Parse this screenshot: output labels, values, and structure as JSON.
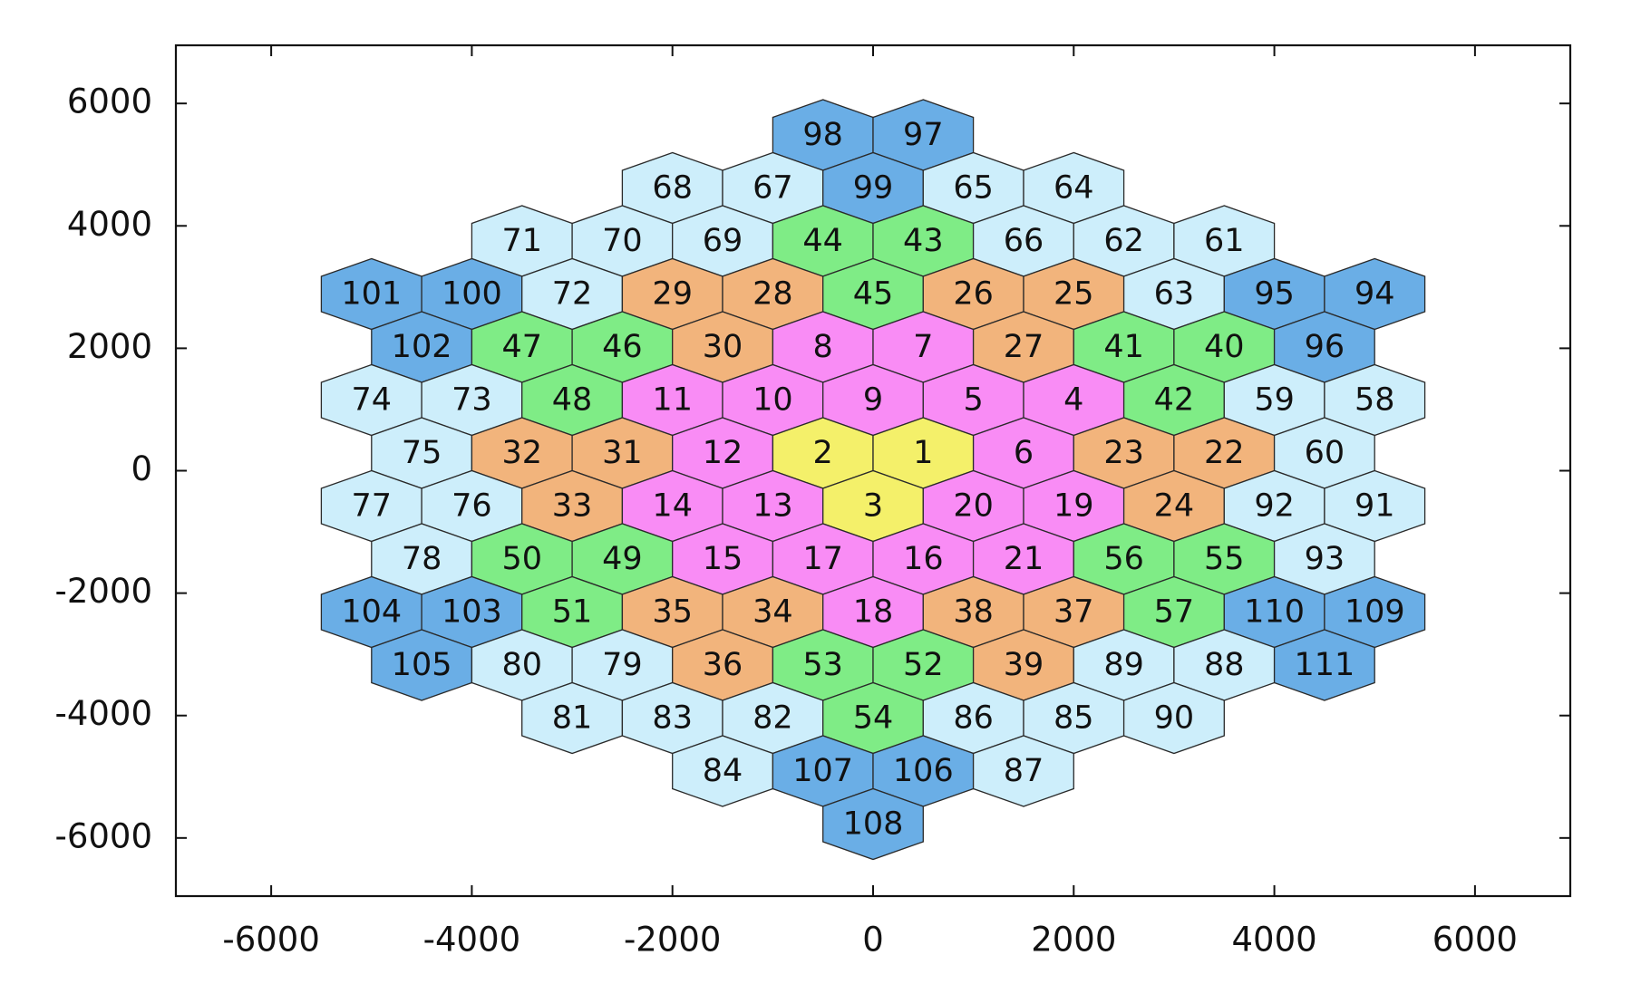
{
  "chart_data": {
    "type": "hexmap",
    "xlim": [
      -6950,
      6950
    ],
    "ylim": [
      -6950,
      6950
    ],
    "xticks": [
      -6000,
      -4000,
      -2000,
      0,
      2000,
      4000,
      6000
    ],
    "yticks": [
      -6000,
      -4000,
      -2000,
      0,
      2000,
      4000,
      6000
    ],
    "cell_width": 1000,
    "cells": [
      {
        "label": 98,
        "x": -500,
        "y": 5485,
        "color": "#6aaee6"
      },
      {
        "label": 97,
        "x": 500,
        "y": 5485,
        "color": "#6aaee6"
      },
      {
        "label": 68,
        "x": -2000,
        "y": 4619,
        "color": "#cdeefb"
      },
      {
        "label": 67,
        "x": -1000,
        "y": 4619,
        "color": "#cdeefb"
      },
      {
        "label": 99,
        "x": 0,
        "y": 4619,
        "color": "#6aaee6"
      },
      {
        "label": 65,
        "x": 1000,
        "y": 4619,
        "color": "#cdeefb"
      },
      {
        "label": 64,
        "x": 2000,
        "y": 4619,
        "color": "#cdeefb"
      },
      {
        "label": 71,
        "x": -3500,
        "y": 3753,
        "color": "#cdeefb"
      },
      {
        "label": 70,
        "x": -2500,
        "y": 3753,
        "color": "#cdeefb"
      },
      {
        "label": 69,
        "x": -1500,
        "y": 3753,
        "color": "#cdeefb"
      },
      {
        "label": 44,
        "x": -500,
        "y": 3753,
        "color": "#7fec86"
      },
      {
        "label": 43,
        "x": 500,
        "y": 3753,
        "color": "#7fec86"
      },
      {
        "label": 66,
        "x": 1500,
        "y": 3753,
        "color": "#cdeefb"
      },
      {
        "label": 62,
        "x": 2500,
        "y": 3753,
        "color": "#cdeefb"
      },
      {
        "label": 61,
        "x": 3500,
        "y": 3753,
        "color": "#cdeefb"
      },
      {
        "label": 101,
        "x": -5000,
        "y": 2887,
        "color": "#6aaee6"
      },
      {
        "label": 100,
        "x": -4000,
        "y": 2887,
        "color": "#6aaee6"
      },
      {
        "label": 72,
        "x": -3000,
        "y": 2887,
        "color": "#cdeefb"
      },
      {
        "label": 29,
        "x": -2000,
        "y": 2887,
        "color": "#f2b47c"
      },
      {
        "label": 28,
        "x": -1000,
        "y": 2887,
        "color": "#f2b47c"
      },
      {
        "label": 45,
        "x": 0,
        "y": 2887,
        "color": "#7fec86"
      },
      {
        "label": 26,
        "x": 1000,
        "y": 2887,
        "color": "#f2b47c"
      },
      {
        "label": 25,
        "x": 2000,
        "y": 2887,
        "color": "#f2b47c"
      },
      {
        "label": 63,
        "x": 3000,
        "y": 2887,
        "color": "#cdeefb"
      },
      {
        "label": 95,
        "x": 4000,
        "y": 2887,
        "color": "#6aaee6"
      },
      {
        "label": 94,
        "x": 5000,
        "y": 2887,
        "color": "#6aaee6"
      },
      {
        "label": 102,
        "x": -4500,
        "y": 2021,
        "color": "#6aaee6"
      },
      {
        "label": 47,
        "x": -3500,
        "y": 2021,
        "color": "#7fec86"
      },
      {
        "label": 46,
        "x": -2500,
        "y": 2021,
        "color": "#7fec86"
      },
      {
        "label": 30,
        "x": -1500,
        "y": 2021,
        "color": "#f2b47c"
      },
      {
        "label": 8,
        "x": -500,
        "y": 2021,
        "color": "#f98cf5"
      },
      {
        "label": 7,
        "x": 500,
        "y": 2021,
        "color": "#f98cf5"
      },
      {
        "label": 27,
        "x": 1500,
        "y": 2021,
        "color": "#f2b47c"
      },
      {
        "label": 41,
        "x": 2500,
        "y": 2021,
        "color": "#7fec86"
      },
      {
        "label": 40,
        "x": 3500,
        "y": 2021,
        "color": "#7fec86"
      },
      {
        "label": 96,
        "x": 4500,
        "y": 2021,
        "color": "#6aaee6"
      },
      {
        "label": 74,
        "x": -5000,
        "y": 1155,
        "color": "#cdeefb"
      },
      {
        "label": 73,
        "x": -4000,
        "y": 1155,
        "color": "#cdeefb"
      },
      {
        "label": 48,
        "x": -3000,
        "y": 1155,
        "color": "#7fec86"
      },
      {
        "label": 11,
        "x": -2000,
        "y": 1155,
        "color": "#f98cf5"
      },
      {
        "label": 10,
        "x": -1000,
        "y": 1155,
        "color": "#f98cf5"
      },
      {
        "label": 9,
        "x": 0,
        "y": 1155,
        "color": "#f98cf5"
      },
      {
        "label": 5,
        "x": 1000,
        "y": 1155,
        "color": "#f98cf5"
      },
      {
        "label": 4,
        "x": 2000,
        "y": 1155,
        "color": "#f98cf5"
      },
      {
        "label": 42,
        "x": 3000,
        "y": 1155,
        "color": "#7fec86"
      },
      {
        "label": 59,
        "x": 4000,
        "y": 1155,
        "color": "#cdeefb"
      },
      {
        "label": 58,
        "x": 5000,
        "y": 1155,
        "color": "#cdeefb"
      },
      {
        "label": 75,
        "x": -4500,
        "y": 289,
        "color": "#cdeefb"
      },
      {
        "label": 32,
        "x": -3500,
        "y": 289,
        "color": "#f2b47c"
      },
      {
        "label": 31,
        "x": -2500,
        "y": 289,
        "color": "#f2b47c"
      },
      {
        "label": 12,
        "x": -1500,
        "y": 289,
        "color": "#f98cf5"
      },
      {
        "label": 2,
        "x": -500,
        "y": 289,
        "color": "#f4f06a"
      },
      {
        "label": 1,
        "x": 500,
        "y": 289,
        "color": "#f4f06a"
      },
      {
        "label": 6,
        "x": 1500,
        "y": 289,
        "color": "#f98cf5"
      },
      {
        "label": 23,
        "x": 2500,
        "y": 289,
        "color": "#f2b47c"
      },
      {
        "label": 22,
        "x": 3500,
        "y": 289,
        "color": "#f2b47c"
      },
      {
        "label": 60,
        "x": 4500,
        "y": 289,
        "color": "#cdeefb"
      },
      {
        "label": 77,
        "x": -5000,
        "y": -577,
        "color": "#cdeefb"
      },
      {
        "label": 76,
        "x": -4000,
        "y": -577,
        "color": "#cdeefb"
      },
      {
        "label": 33,
        "x": -3000,
        "y": -577,
        "color": "#f2b47c"
      },
      {
        "label": 14,
        "x": -2000,
        "y": -577,
        "color": "#f98cf5"
      },
      {
        "label": 13,
        "x": -1000,
        "y": -577,
        "color": "#f98cf5"
      },
      {
        "label": 3,
        "x": 0,
        "y": -577,
        "color": "#f4f06a"
      },
      {
        "label": 20,
        "x": 1000,
        "y": -577,
        "color": "#f98cf5"
      },
      {
        "label": 19,
        "x": 2000,
        "y": -577,
        "color": "#f98cf5"
      },
      {
        "label": 24,
        "x": 3000,
        "y": -577,
        "color": "#f2b47c"
      },
      {
        "label": 92,
        "x": 4000,
        "y": -577,
        "color": "#cdeefb"
      },
      {
        "label": 91,
        "x": 5000,
        "y": -577,
        "color": "#cdeefb"
      },
      {
        "label": 78,
        "x": -4500,
        "y": -1443,
        "color": "#cdeefb"
      },
      {
        "label": 50,
        "x": -3500,
        "y": -1443,
        "color": "#7fec86"
      },
      {
        "label": 49,
        "x": -2500,
        "y": -1443,
        "color": "#7fec86"
      },
      {
        "label": 15,
        "x": -1500,
        "y": -1443,
        "color": "#f98cf5"
      },
      {
        "label": 17,
        "x": -500,
        "y": -1443,
        "color": "#f98cf5"
      },
      {
        "label": 16,
        "x": 500,
        "y": -1443,
        "color": "#f98cf5"
      },
      {
        "label": 21,
        "x": 1500,
        "y": -1443,
        "color": "#f98cf5"
      },
      {
        "label": 56,
        "x": 2500,
        "y": -1443,
        "color": "#7fec86"
      },
      {
        "label": 55,
        "x": 3500,
        "y": -1443,
        "color": "#7fec86"
      },
      {
        "label": 93,
        "x": 4500,
        "y": -1443,
        "color": "#cdeefb"
      },
      {
        "label": 104,
        "x": -5000,
        "y": -2309,
        "color": "#6aaee6"
      },
      {
        "label": 103,
        "x": -4000,
        "y": -2309,
        "color": "#6aaee6"
      },
      {
        "label": 51,
        "x": -3000,
        "y": -2309,
        "color": "#7fec86"
      },
      {
        "label": 35,
        "x": -2000,
        "y": -2309,
        "color": "#f2b47c"
      },
      {
        "label": 34,
        "x": -1000,
        "y": -2309,
        "color": "#f2b47c"
      },
      {
        "label": 18,
        "x": 0,
        "y": -2309,
        "color": "#f98cf5"
      },
      {
        "label": 38,
        "x": 1000,
        "y": -2309,
        "color": "#f2b47c"
      },
      {
        "label": 37,
        "x": 2000,
        "y": -2309,
        "color": "#f2b47c"
      },
      {
        "label": 57,
        "x": 3000,
        "y": -2309,
        "color": "#7fec86"
      },
      {
        "label": 110,
        "x": 4000,
        "y": -2309,
        "color": "#6aaee6"
      },
      {
        "label": 109,
        "x": 5000,
        "y": -2309,
        "color": "#6aaee6"
      },
      {
        "label": 105,
        "x": -4500,
        "y": -3175,
        "color": "#6aaee6"
      },
      {
        "label": 80,
        "x": -3500,
        "y": -3175,
        "color": "#cdeefb"
      },
      {
        "label": 79,
        "x": -2500,
        "y": -3175,
        "color": "#cdeefb"
      },
      {
        "label": 36,
        "x": -1500,
        "y": -3175,
        "color": "#f2b47c"
      },
      {
        "label": 53,
        "x": -500,
        "y": -3175,
        "color": "#7fec86"
      },
      {
        "label": 52,
        "x": 500,
        "y": -3175,
        "color": "#7fec86"
      },
      {
        "label": 39,
        "x": 1500,
        "y": -3175,
        "color": "#f2b47c"
      },
      {
        "label": 89,
        "x": 2500,
        "y": -3175,
        "color": "#cdeefb"
      },
      {
        "label": 88,
        "x": 3500,
        "y": -3175,
        "color": "#cdeefb"
      },
      {
        "label": 111,
        "x": 4500,
        "y": -3175,
        "color": "#6aaee6"
      },
      {
        "label": 81,
        "x": -3000,
        "y": -4041,
        "color": "#cdeefb"
      },
      {
        "label": 83,
        "x": -2000,
        "y": -4041,
        "color": "#cdeefb"
      },
      {
        "label": 82,
        "x": -1000,
        "y": -4041,
        "color": "#cdeefb"
      },
      {
        "label": 54,
        "x": 0,
        "y": -4041,
        "color": "#7fec86"
      },
      {
        "label": 86,
        "x": 1000,
        "y": -4041,
        "color": "#cdeefb"
      },
      {
        "label": 85,
        "x": 2000,
        "y": -4041,
        "color": "#cdeefb"
      },
      {
        "label": 90,
        "x": 3000,
        "y": -4041,
        "color": "#cdeefb"
      },
      {
        "label": 84,
        "x": -1500,
        "y": -4907,
        "color": "#cdeefb"
      },
      {
        "label": 107,
        "x": -500,
        "y": -4907,
        "color": "#6aaee6"
      },
      {
        "label": 106,
        "x": 500,
        "y": -4907,
        "color": "#6aaee6"
      },
      {
        "label": 87,
        "x": 1500,
        "y": -4907,
        "color": "#cdeefb"
      },
      {
        "label": 108,
        "x": 0,
        "y": -5773,
        "color": "#6aaee6"
      }
    ]
  }
}
